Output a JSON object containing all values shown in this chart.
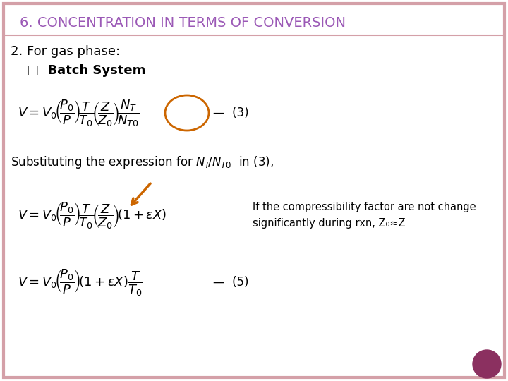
{
  "bg_color": "#ffffff",
  "border_color": "#d4a0a8",
  "title_display": "6. CONCENTRATION IN TERMS OF CONVERSION",
  "title_color": "#9b59b6",
  "subtitle": "2. For gas phase:",
  "batch_label": "□  Batch System",
  "note_text": "If the compressibility factor are not change\nsignificantly during rxn, Z₀≈Z",
  "circle_color": "#8b3060",
  "arrow_color": "#cc6600",
  "oval_color": "#cc6600",
  "figw": 7.2,
  "figh": 5.4,
  "dpi": 100
}
